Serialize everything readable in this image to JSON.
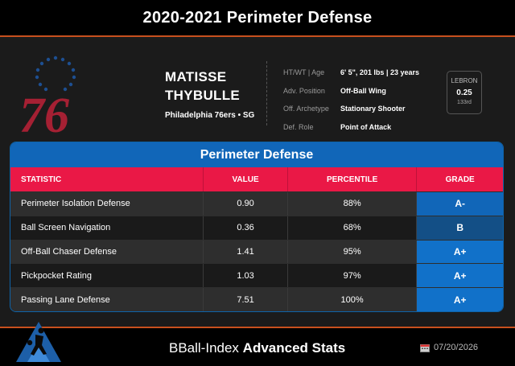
{
  "title": "2020-2021 Perimeter Defense",
  "player": {
    "first_name": "MATISSE",
    "last_name": "THYBULLE",
    "team_pos": "Philadelphia 76ers • SG"
  },
  "logo": {
    "text": "76",
    "primary_color": "#a52033",
    "accent_color": "#1d4f91"
  },
  "info": [
    {
      "label": "HT/WT | Age",
      "value": "6' 5\", 201 lbs | 23 years"
    },
    {
      "label": "Adv. Position",
      "value": "Off-Ball Wing"
    },
    {
      "label": "Off. Archetype",
      "value": "Stationary Shooter"
    },
    {
      "label": "Def. Role",
      "value": "Point of Attack"
    }
  ],
  "lebron": {
    "label": "LEBRON",
    "value": "0.25",
    "rank": "133rd"
  },
  "table": {
    "title": "Perimeter Defense",
    "headers": [
      "STATISTIC",
      "VALUE",
      "PERCENTILE",
      "GRADE"
    ],
    "rows": [
      {
        "stat": "Perimeter Isolation Defense",
        "value": "0.90",
        "percentile": "88%",
        "grade": "A-",
        "grade_color": "#1166b8"
      },
      {
        "stat": "Ball Screen Navigation",
        "value": "0.36",
        "percentile": "68%",
        "grade": "B",
        "grade_color": "#134f86"
      },
      {
        "stat": "Off-Ball Chaser Defense",
        "value": "1.41",
        "percentile": "95%",
        "grade": "A+",
        "grade_color": "#1171c9"
      },
      {
        "stat": "Pickpocket Rating",
        "value": "1.03",
        "percentile": "97%",
        "grade": "A+",
        "grade_color": "#1171c9"
      },
      {
        "stat": "Passing Lane Defense",
        "value": "7.51",
        "percentile": "100%",
        "grade": "A+",
        "grade_color": "#1171c9"
      }
    ]
  },
  "footer": {
    "brand_regular": "BBall-Index ",
    "brand_bold": "Advanced Stats",
    "date": "07/20/2026"
  },
  "colors": {
    "accent_line": "#c8501e",
    "header_red": "#ea1846",
    "panel_blue": "#1166b8"
  }
}
